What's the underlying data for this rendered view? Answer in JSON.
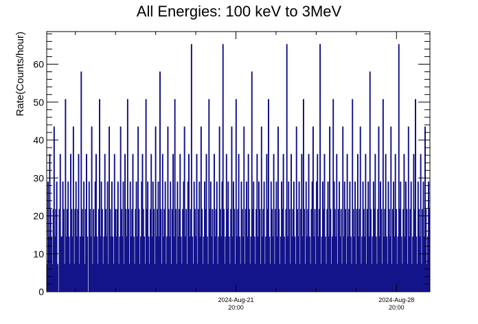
{
  "chart_data": {
    "type": "line",
    "title": "All Energies:  100 keV to 3MeV",
    "xlabel": "",
    "ylabel": "Rate(Counts/hour)",
    "ylim": [
      0,
      68.6
    ],
    "y_ticks": [
      0,
      10,
      20,
      30,
      40,
      50,
      60
    ],
    "x_range": [
      "2024-Aug-13 14:00",
      "2024-Aug-30 07:00"
    ],
    "x_ticks": [
      {
        "date": "2024-Aug-21",
        "time": "20:00"
      },
      {
        "date": "2024-Aug-28",
        "time": "20:00"
      }
    ],
    "bin_hours": 1,
    "count_quantum": 7.25,
    "series": [
      {
        "color": "#000080",
        "values": [
          7.25,
          29.0,
          14.5,
          36.25,
          21.75,
          14.5,
          7.25,
          21.75,
          43.5,
          14.5,
          21.75,
          29.0,
          7.25,
          0,
          21.75,
          36.25,
          14.5,
          14.5,
          29.0,
          21.75,
          7.25,
          50.75,
          14.5,
          21.75,
          29.0,
          14.5,
          7.25,
          36.25,
          21.75,
          14.5,
          43.5,
          7.25,
          21.75,
          29.0,
          14.5,
          21.75,
          36.25,
          7.25,
          14.5,
          58.0,
          21.75,
          14.5,
          29.0,
          7.25,
          21.75,
          36.25,
          14.5,
          0,
          29.0,
          21.75,
          14.5,
          43.5,
          7.25,
          21.75,
          14.5,
          29.0,
          36.25,
          14.5,
          7.25,
          21.75,
          50.75,
          14.5,
          29.0,
          21.75,
          7.25,
          14.5,
          36.25,
          21.75,
          14.5,
          29.0,
          7.25,
          43.5,
          21.75,
          14.5,
          29.0,
          14.5,
          7.25,
          36.25,
          21.75,
          14.5,
          21.75,
          29.0,
          7.25,
          14.5,
          43.5,
          21.75,
          14.5,
          29.0,
          7.25,
          36.25,
          21.75,
          14.5,
          50.75,
          21.75,
          7.25,
          29.0,
          14.5,
          21.75,
          36.25,
          14.5,
          7.25,
          21.75,
          29.0,
          14.5,
          43.5,
          21.75,
          7.25,
          14.5,
          29.0,
          36.25,
          21.75,
          14.5,
          7.25,
          50.75,
          21.75,
          29.0,
          14.5,
          7.25,
          21.75,
          36.25,
          14.5,
          29.0,
          21.75,
          7.25,
          43.5,
          14.5,
          21.75,
          29.0,
          14.5,
          58.0,
          21.75,
          7.25,
          36.25,
          14.5,
          21.75,
          29.0,
          7.25,
          14.5,
          43.5,
          21.75,
          14.5,
          29.0,
          7.25,
          21.75,
          36.25,
          14.5,
          50.75,
          21.75,
          7.25,
          29.0,
          14.5,
          21.75,
          36.25,
          14.5,
          7.25,
          21.75,
          29.0,
          43.5,
          14.5,
          21.75,
          7.25,
          29.0,
          36.25,
          14.5,
          21.75,
          65.25,
          14.5,
          7.25,
          29.0,
          21.75,
          14.5,
          36.25,
          7.25,
          21.75,
          29.0,
          14.5,
          43.5,
          21.75,
          7.25,
          14.5,
          29.0,
          21.75,
          36.25,
          14.5,
          7.25,
          50.75,
          21.75,
          29.0,
          14.5,
          21.75,
          7.25,
          36.25,
          14.5,
          21.75,
          29.0,
          7.25,
          14.5,
          43.5,
          21.75,
          14.5,
          29.0,
          65.25,
          21.75,
          7.25,
          14.5,
          36.25,
          21.75,
          29.0,
          14.5,
          7.25,
          21.75,
          43.5,
          14.5,
          29.0,
          21.75,
          7.25,
          50.75,
          14.5,
          21.75,
          36.25,
          14.5,
          7.25,
          29.0,
          21.75,
          14.5,
          43.5,
          7.25,
          21.75,
          29.0,
          14.5,
          36.25,
          21.75,
          7.25,
          14.5,
          58.0,
          21.75,
          29.0,
          14.5,
          7.25,
          21.75,
          36.25,
          14.5,
          29.0,
          21.75,
          7.25,
          43.5,
          14.5,
          21.75,
          29.0,
          7.25,
          14.5,
          36.25,
          21.75,
          50.75,
          14.5,
          7.25,
          29.0,
          21.75,
          14.5,
          36.25,
          7.25,
          21.75,
          29.0,
          14.5,
          43.5,
          21.75,
          7.25,
          14.5,
          29.0,
          21.75,
          36.25,
          14.5,
          7.25,
          21.75,
          65.25,
          14.5,
          29.0,
          21.75,
          7.25,
          36.25,
          14.5,
          21.75,
          29.0,
          14.5,
          7.25,
          43.5,
          21.75,
          14.5,
          29.0,
          7.25,
          21.75,
          36.25,
          14.5,
          50.75,
          21.75,
          7.25,
          29.0,
          14.5,
          21.75,
          36.25,
          14.5,
          7.25,
          21.75,
          29.0,
          43.5,
          14.5,
          21.75,
          7.25,
          29.0,
          36.25,
          14.5,
          21.75,
          65.25,
          7.25,
          14.5,
          29.0,
          21.75,
          36.25,
          14.5,
          7.25,
          21.75,
          29.0,
          14.5,
          43.5,
          21.75,
          7.25,
          14.5,
          50.75,
          29.0,
          21.75,
          14.5,
          36.25,
          7.25,
          21.75,
          29.0,
          14.5,
          21.75,
          7.25,
          43.5,
          14.5,
          29.0,
          21.75,
          7.25,
          36.25,
          14.5,
          21.75,
          29.0,
          14.5,
          7.25,
          50.75,
          21.75,
          14.5,
          29.0,
          7.25,
          21.75,
          36.25,
          14.5,
          21.75,
          43.5,
          7.25,
          14.5,
          29.0,
          21.75,
          14.5,
          36.25,
          7.25,
          21.75,
          29.0,
          14.5,
          58.0,
          21.75,
          7.25,
          14.5,
          29.0,
          21.75,
          36.25,
          14.5,
          7.25,
          21.75,
          43.5,
          14.5,
          29.0,
          21.75,
          7.25,
          50.75,
          14.5,
          21.75,
          36.25,
          14.5,
          7.25,
          29.0,
          21.75,
          14.5,
          43.5,
          7.25,
          21.75,
          29.0,
          14.5,
          36.25,
          21.75,
          7.25,
          14.5,
          65.25,
          21.75,
          29.0,
          14.5,
          7.25,
          21.75,
          36.25,
          14.5,
          29.0,
          21.75,
          7.25,
          43.5,
          14.5,
          21.75,
          29.0,
          7.25,
          14.5,
          36.25,
          21.75,
          50.75,
          14.5,
          7.25,
          29.0,
          21.75,
          14.5,
          36.25,
          7.25,
          21.75,
          29.0,
          14.5,
          43.5,
          21.75,
          7.25,
          14.5,
          29.0,
          21.75
        ]
      }
    ]
  }
}
